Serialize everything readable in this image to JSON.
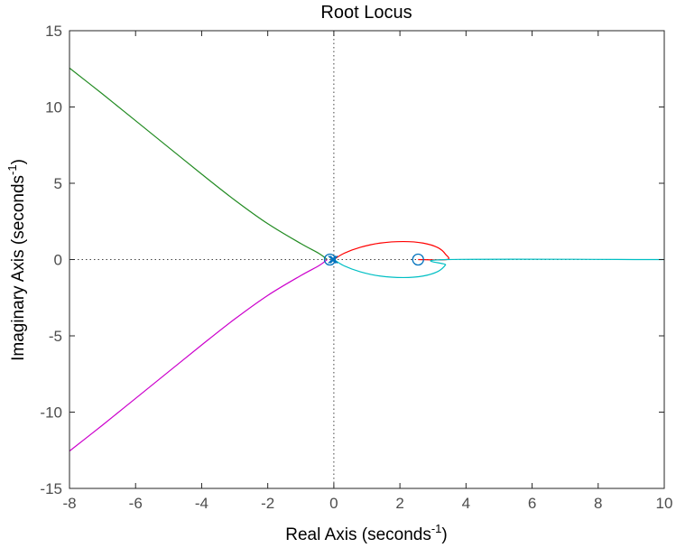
{
  "chart_data": {
    "type": "line",
    "title": "Root Locus",
    "xlabel": {
      "text": "Real Axis (seconds",
      "sup": "-1",
      "suffix": ")"
    },
    "ylabel": {
      "text": "Imaginary Axis (seconds",
      "sup": "-1",
      "suffix": ")"
    },
    "xlim": [
      -8,
      10
    ],
    "ylim": [
      -15,
      15
    ],
    "xticks": [
      -8,
      -6,
      -4,
      -2,
      0,
      2,
      4,
      6,
      8,
      10
    ],
    "yticks": [
      -15,
      -10,
      -5,
      0,
      5,
      10,
      15
    ],
    "grid": false,
    "reference_lines": {
      "x": 0,
      "y": 0,
      "style": "dotted",
      "color": "#444444"
    },
    "series": [
      {
        "color": "#228B22",
        "points": [
          [
            -0.2,
            0
          ],
          [
            -0.45,
            0.4
          ],
          [
            -1,
            1.05
          ],
          [
            -2,
            2.35
          ],
          [
            -3,
            3.9
          ],
          [
            -4,
            5.6
          ],
          [
            -5,
            7.35
          ],
          [
            -6,
            9.1
          ],
          [
            -7,
            10.85
          ],
          [
            -8,
            12.55
          ]
        ]
      },
      {
        "color": "#CC00CC",
        "points": [
          [
            -0.2,
            0
          ],
          [
            -0.45,
            -0.4
          ],
          [
            -1,
            -1.05
          ],
          [
            -2,
            -2.35
          ],
          [
            -3,
            -3.9
          ],
          [
            -4,
            -5.6
          ],
          [
            -5,
            -7.35
          ],
          [
            -6,
            -9.1
          ],
          [
            -7,
            -10.85
          ],
          [
            -8,
            -12.55
          ]
        ]
      },
      {
        "color": "#FF0000",
        "points": [
          [
            0,
            0
          ],
          [
            0.3,
            0.4
          ],
          [
            0.8,
            0.8
          ],
          [
            1.4,
            1.08
          ],
          [
            2.1,
            1.18
          ],
          [
            2.7,
            1.08
          ],
          [
            3.15,
            0.78
          ],
          [
            3.38,
            0.35
          ],
          [
            3.42,
            0
          ],
          [
            2.55,
            0
          ]
        ]
      },
      {
        "color": "#00BFC4",
        "points": [
          [
            0,
            0
          ],
          [
            0.3,
            -0.4
          ],
          [
            0.8,
            -0.8
          ],
          [
            1.4,
            -1.08
          ],
          [
            2.1,
            -1.18
          ],
          [
            2.7,
            -1.08
          ],
          [
            3.15,
            -0.78
          ],
          [
            3.38,
            -0.35
          ],
          [
            3.42,
            0
          ],
          [
            10,
            0
          ]
        ]
      }
    ],
    "zeros": [
      [
        -0.12,
        0
      ],
      [
        2.55,
        0
      ]
    ],
    "poles": [
      [
        0,
        0
      ],
      [
        -0.05,
        0
      ]
    ],
    "marker_color": "#0072BD"
  }
}
